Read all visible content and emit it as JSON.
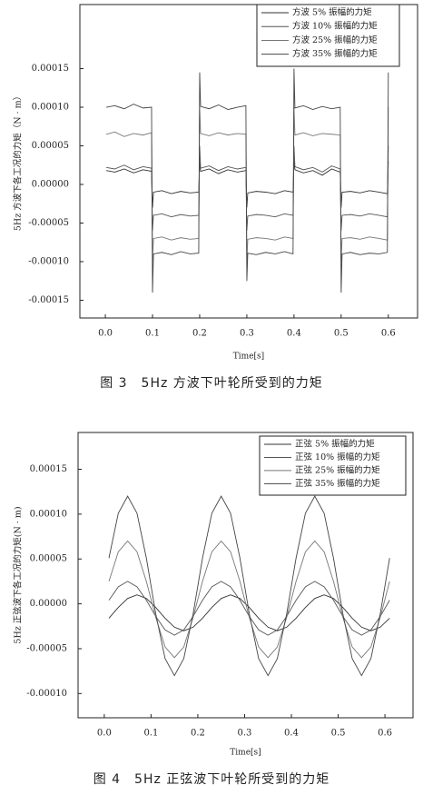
{
  "chart_data": [
    {
      "type": "line",
      "caption": "图 3　5Hz 方波下叶轮所受到的力矩",
      "xlabel": "Time[s]",
      "ylabel": "5Hz 方波下各工况的力矩（N · m）",
      "xlim": [
        -0.054,
        0.662
      ],
      "ylim": [
        -0.000173,
        0.000233
      ],
      "xticks": [
        {
          "value": 0,
          "label": "0.0"
        },
        0.1,
        0.2,
        0.3,
        0.4,
        0.5,
        0.6
      ],
      "yticks": [
        {
          "value": -0.00015,
          "label": "-0.00015"
        },
        {
          "value": -0.0001,
          "label": "-0.00010"
        },
        {
          "value": -5e-05,
          "label": "-0.00005"
        },
        {
          "value": 0,
          "label": "0.00000"
        },
        {
          "value": 5e-05,
          "label": "0.00005"
        },
        {
          "value": 0.0001,
          "label": "0.00010"
        },
        {
          "value": 0.00015,
          "label": "0.00015"
        }
      ],
      "legend": "upper right",
      "x": [
        0.002,
        0.02,
        0.04,
        0.06,
        0.08,
        0.098,
        0.1,
        0.102,
        0.12,
        0.14,
        0.16,
        0.18,
        0.198,
        0.2,
        0.202,
        0.22,
        0.24,
        0.26,
        0.28,
        0.298,
        0.3,
        0.302,
        0.32,
        0.34,
        0.36,
        0.38,
        0.398,
        0.4,
        0.402,
        0.42,
        0.44,
        0.46,
        0.48,
        0.498,
        0.5,
        0.502,
        0.52,
        0.54,
        0.56,
        0.58,
        0.598,
        0.6
      ],
      "series": [
        {
          "name": "方波 5% 振幅的力矩",
          "color": "#333333",
          "values": [
            1.8e-05,
            1.6e-05,
            2e-05,
            1.5e-05,
            1.9e-05,
            1.7e-05,
            -3e-05,
            -1e-05,
            -8e-06,
            -1.2e-05,
            -9e-06,
            -1.1e-05,
            -1e-05,
            3e-05,
            1.7e-05,
            2e-05,
            1.4e-05,
            1.9e-05,
            1.6e-05,
            1.8e-05,
            -3e-05,
            -1.1e-05,
            -9e-06,
            -1e-05,
            -1.2e-05,
            -8e-06,
            -1e-05,
            3e-05,
            1.9e-05,
            1.5e-05,
            1.8e-05,
            1.2e-05,
            2e-05,
            1.6e-05,
            -3e-05,
            -1e-05,
            -9e-06,
            -1.1e-05,
            -8e-06,
            -1e-05,
            -1.2e-05,
            3e-05
          ]
        },
        {
          "name": "方波 10% 振幅的力矩",
          "color": "#555555",
          "values": [
            2.2e-05,
            2e-05,
            2.5e-05,
            1.9e-05,
            2.3e-05,
            2.1e-05,
            -6e-05,
            -4e-05,
            -3.8e-05,
            -4.2e-05,
            -3.9e-05,
            -4.1e-05,
            -4e-05,
            5e-05,
            2.1e-05,
            2.4e-05,
            1.8e-05,
            2.3e-05,
            2e-05,
            2.2e-05,
            -6e-05,
            -4.1e-05,
            -3.9e-05,
            -4e-05,
            -4.2e-05,
            -3.8e-05,
            -4e-05,
            5e-05,
            2.3e-05,
            1.9e-05,
            2.2e-05,
            1.6e-05,
            2.4e-05,
            2e-05,
            -6e-05,
            -4e-05,
            -3.9e-05,
            -4.1e-05,
            -3.8e-05,
            -4e-05,
            -4.2e-05,
            5e-05
          ]
        },
        {
          "name": "方波 25% 振幅的力矩",
          "color": "#777777",
          "values": [
            6.5e-05,
            6.8e-05,
            6.2e-05,
            6.6e-05,
            6.4e-05,
            6.7e-05,
            -0.0001,
            -7e-05,
            -6.8e-05,
            -7.2e-05,
            -6.9e-05,
            -7.1e-05,
            -7e-05,
            0.0001,
            6.6e-05,
            6.3e-05,
            6.7e-05,
            6.4e-05,
            6.6e-05,
            6.5e-05,
            -0.0001,
            -7.1e-05,
            -6.9e-05,
            -7e-05,
            -7.2e-05,
            -6.8e-05,
            -7e-05,
            0.0001,
            6.4e-05,
            6.7e-05,
            6.3e-05,
            6.6e-05,
            6.5e-05,
            6.4e-05,
            -0.0001,
            -7e-05,
            -6.9e-05,
            -7.1e-05,
            -6.8e-05,
            -7e-05,
            -7.2e-05,
            0.0001
          ]
        },
        {
          "name": "方波 35% 振幅的力矩",
          "color": "#444444",
          "values": [
            0.0001,
            0.000102,
            9.8e-05,
            0.000104,
            9.9e-05,
            0.0001,
            -0.00014,
            -9e-05,
            -8.8e-05,
            -9.1e-05,
            -8.7e-05,
            -9e-05,
            -8.9e-05,
            0.000145,
            0.000101,
            9.8e-05,
            0.000103,
            9.7e-05,
            0.0001,
            0.000102,
            -0.000125,
            -8.9e-05,
            -9.1e-05,
            -8.8e-05,
            -9e-05,
            -8.7e-05,
            -9e-05,
            0.00015,
            9.9e-05,
            0.000102,
            9.7e-05,
            0.000101,
            9.8e-05,
            0.0001,
            -0.00014,
            -9e-05,
            -8.8e-05,
            -9.1e-05,
            -8.9e-05,
            -9e-05,
            -8.8e-05,
            0.000145
          ]
        }
      ]
    },
    {
      "type": "line",
      "caption": "图 4　5Hz 正弦波下叶轮所受到的力矩",
      "xlabel": "Time[s]",
      "ylabel": "5Hz 正弦波下各工况的力矩(N · m)",
      "xlim": [
        -0.056,
        0.66
      ],
      "ylim": [
        -0.000127,
        0.000191
      ],
      "xticks": [
        {
          "value": 0,
          "label": "0.0"
        },
        0.1,
        0.2,
        0.3,
        0.4,
        0.5,
        0.6
      ],
      "yticks": [
        {
          "value": -0.0001,
          "label": "-0.00010"
        },
        {
          "value": -5e-05,
          "label": "-0.00005"
        },
        {
          "value": 0,
          "label": "0.00000"
        },
        {
          "value": 5e-05,
          "label": "0.00005"
        },
        {
          "value": 0.0001,
          "label": "0.00010"
        },
        {
          "value": 0.00015,
          "label": "0.00015"
        }
      ],
      "legend": "upper right",
      "x": [
        0.01,
        0.03,
        0.05,
        0.07,
        0.09,
        0.11,
        0.13,
        0.15,
        0.17,
        0.19,
        0.21,
        0.23,
        0.25,
        0.27,
        0.29,
        0.31,
        0.33,
        0.35,
        0.37,
        0.39,
        0.41,
        0.43,
        0.45,
        0.47,
        0.49,
        0.51,
        0.53,
        0.55,
        0.57,
        0.59,
        0.61
      ],
      "series": [
        {
          "name": "正弦 5% 振幅的力矩",
          "color": "#333333",
          "values": [
            -1.6e-05,
            -4e-06,
            6e-06,
            1e-05,
            6e-06,
            -4e-06,
            -1.6e-05,
            -2.6e-05,
            -3e-05,
            -2.6e-05,
            -1.6e-05,
            -4e-06,
            6e-06,
            1e-05,
            6e-06,
            -4e-06,
            -1.6e-05,
            -2.6e-05,
            -3e-05,
            -2.6e-05,
            -1.6e-05,
            -4e-06,
            6e-06,
            1e-05,
            6e-06,
            -4e-06,
            -1.6e-05,
            -2.6e-05,
            -3e-05,
            -2.6e-05,
            -1.6e-05
          ]
        },
        {
          "name": "正弦 10% 振幅的力矩",
          "color": "#555555",
          "values": [
            4e-06,
            1.9e-05,
            2.5e-05,
            1.9e-05,
            4e-06,
            -1.4e-05,
            -2.9e-05,
            -3.5e-05,
            -2.9e-05,
            -1.4e-05,
            4e-06,
            1.9e-05,
            2.5e-05,
            1.9e-05,
            4e-06,
            -1.4e-05,
            -2.9e-05,
            -3.5e-05,
            -2.9e-05,
            -1.4e-05,
            4e-06,
            1.9e-05,
            2.5e-05,
            1.9e-05,
            4e-06,
            -1.4e-05,
            -2.9e-05,
            -3.5e-05,
            -2.9e-05,
            -1.4e-05,
            4e-06
          ]
        },
        {
          "name": "正弦 25% 振幅的力矩",
          "color": "#777777",
          "values": [
            2.5e-05,
            5.8e-05,
            7e-05,
            5.8e-05,
            2.5e-05,
            -1.5e-05,
            -4.8e-05,
            -6e-05,
            -4.8e-05,
            -1.5e-05,
            2.5e-05,
            5.8e-05,
            7e-05,
            5.8e-05,
            2.5e-05,
            -1.5e-05,
            -4.8e-05,
            -6e-05,
            -4.8e-05,
            -1.5e-05,
            2.5e-05,
            5.8e-05,
            7e-05,
            5.8e-05,
            2.5e-05,
            -1.5e-05,
            -4.8e-05,
            -6e-05,
            -4.8e-05,
            -1.5e-05,
            2.5e-05
          ]
        },
        {
          "name": "正弦 35% 振幅的力矩",
          "color": "#444444",
          "values": [
            5.1e-05,
            0.000101,
            0.00012,
            0.000101,
            5.1e-05,
            -1.1e-05,
            -6.1e-05,
            -8e-05,
            -6.1e-05,
            -1.1e-05,
            5.1e-05,
            0.000101,
            0.00012,
            0.000101,
            5.1e-05,
            -1.1e-05,
            -6.1e-05,
            -8e-05,
            -6.1e-05,
            -1.1e-05,
            5.1e-05,
            0.000101,
            0.00012,
            0.000101,
            5.1e-05,
            -1.1e-05,
            -6.1e-05,
            -8e-05,
            -6.1e-05,
            -1.1e-05,
            5.1e-05
          ]
        }
      ]
    }
  ]
}
